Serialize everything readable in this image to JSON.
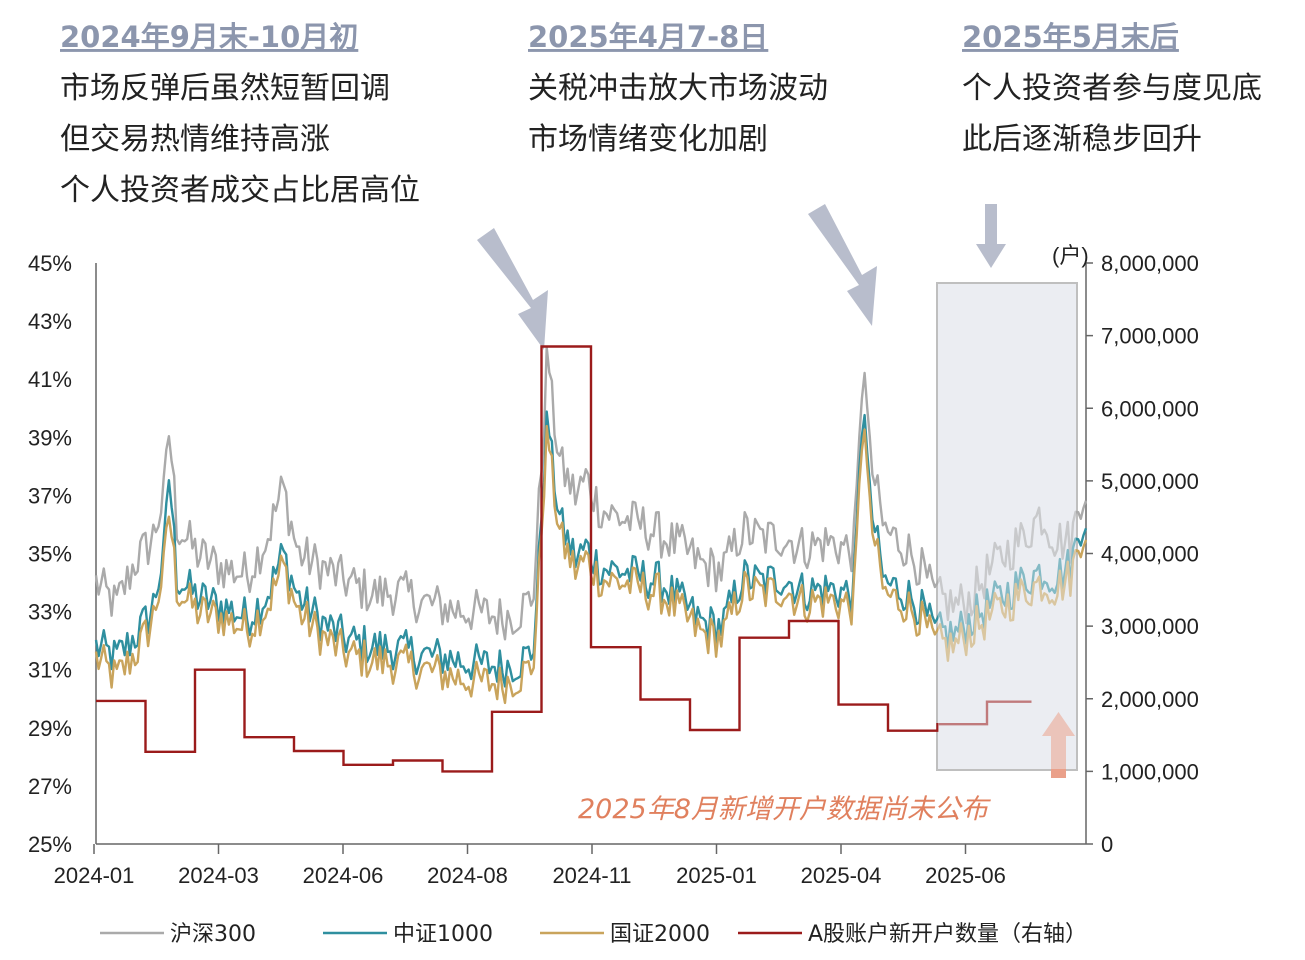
{
  "annotations": [
    {
      "heading": "2024年9月末-10月初",
      "lines": [
        "市场反弹后虽然短暂回调",
        "但交易热情维持高涨",
        "个人投资者成交占比居高位"
      ]
    },
    {
      "heading": "2025年4月7-8日",
      "lines": [
        "关税冲击放大市场波动",
        "市场情绪变化加剧"
      ]
    },
    {
      "heading": "2025年5月末后",
      "lines": [
        "个人投资者参与度见底",
        "此后逐渐稳步回升"
      ]
    }
  ],
  "note": "2025年8月新增开户数据尚未公布",
  "colors": {
    "hs300": "#aaaaaa",
    "zz1000": "#2f8f9f",
    "gz2000": "#c9a45c",
    "accounts": "#9b1b1b",
    "highlight_fill": "#e9ecf1",
    "arrow": "#b8bdcc",
    "note_arrow": "#eaa08a",
    "heading": "#8c96ad"
  },
  "chart_data": {
    "type": "line",
    "y_left": {
      "min": 25,
      "max": 45,
      "ticks": [
        "45%",
        "43%",
        "41%",
        "39%",
        "37%",
        "35%",
        "33%",
        "31%",
        "29%",
        "27%",
        "25%"
      ]
    },
    "y_right": {
      "unit": "(户)",
      "min": 0,
      "max": 8000000,
      "ticks": [
        "8,000,000",
        "7,000,000",
        "6,000,000",
        "5,000,000",
        "4,000,000",
        "3,000,000",
        "2,000,000",
        "1,000,000",
        "0"
      ]
    },
    "x_ticks": [
      "2024-01",
      "2024-03",
      "2024-06",
      "2024-08",
      "2024-11",
      "2025-01",
      "2025-04",
      "2025-06"
    ],
    "x_range_months": [
      0,
      19.6
    ],
    "series": [
      {
        "name": "沪深300",
        "key": "hs300",
        "anchors": [
          [
            0,
            34.0
          ],
          [
            0.4,
            33.2
          ],
          [
            0.8,
            34.8
          ],
          [
            1.1,
            35.4
          ],
          [
            1.35,
            37.0
          ],
          [
            1.45,
            39.3
          ],
          [
            1.6,
            36.0
          ],
          [
            2.0,
            35.0
          ],
          [
            2.5,
            34.5
          ],
          [
            3.0,
            34.3
          ],
          [
            3.4,
            35.6
          ],
          [
            3.7,
            37.3
          ],
          [
            4.0,
            35.0
          ],
          [
            4.5,
            34.5
          ],
          [
            5.0,
            34.0
          ],
          [
            5.5,
            33.6
          ],
          [
            6.0,
            33.7
          ],
          [
            6.5,
            33.3
          ],
          [
            7.0,
            33.1
          ],
          [
            7.5,
            33.0
          ],
          [
            8.0,
            32.8
          ],
          [
            8.3,
            32.9
          ],
          [
            8.65,
            33.5
          ],
          [
            8.75,
            36.0
          ],
          [
            8.85,
            39.0
          ],
          [
            8.95,
            42.4
          ],
          [
            9.0,
            40.5
          ],
          [
            9.2,
            38.0
          ],
          [
            9.5,
            37.0
          ],
          [
            9.7,
            37.6
          ],
          [
            10.0,
            36.5
          ],
          [
            10.4,
            36.2
          ],
          [
            10.8,
            36.0
          ],
          [
            11.2,
            35.6
          ],
          [
            11.6,
            35.2
          ],
          [
            12.0,
            34.6
          ],
          [
            12.4,
            34.4
          ],
          [
            12.8,
            35.8
          ],
          [
            13.2,
            35.5
          ],
          [
            13.6,
            35.6
          ],
          [
            14.0,
            35.2
          ],
          [
            14.5,
            35.4
          ],
          [
            15.0,
            35.1
          ],
          [
            15.1,
            38.0
          ],
          [
            15.2,
            42.3
          ],
          [
            15.3,
            38.5
          ],
          [
            15.6,
            35.8
          ],
          [
            16.0,
            35.3
          ],
          [
            16.3,
            34.6
          ],
          [
            16.6,
            33.5
          ],
          [
            17.0,
            33.2
          ],
          [
            17.3,
            33.4
          ],
          [
            17.6,
            34.2
          ],
          [
            18.0,
            35.0
          ],
          [
            18.4,
            35.6
          ],
          [
            18.7,
            36.4
          ],
          [
            19.0,
            35.5
          ],
          [
            19.3,
            35.4
          ],
          [
            19.5,
            37.0
          ],
          [
            19.6,
            37.3
          ]
        ]
      },
      {
        "name": "中证1000",
        "key": "zz1000",
        "anchors": [
          [
            0,
            31.8
          ],
          [
            0.4,
            31.4
          ],
          [
            0.8,
            32.2
          ],
          [
            1.1,
            33.0
          ],
          [
            1.35,
            35.0
          ],
          [
            1.45,
            37.8
          ],
          [
            1.6,
            34.2
          ],
          [
            2.0,
            33.5
          ],
          [
            2.5,
            33.2
          ],
          [
            3.0,
            32.8
          ],
          [
            3.4,
            33.6
          ],
          [
            3.7,
            35.0
          ],
          [
            4.0,
            33.5
          ],
          [
            4.5,
            32.6
          ],
          [
            5.0,
            32.0
          ],
          [
            5.5,
            31.8
          ],
          [
            6.0,
            31.7
          ],
          [
            6.5,
            31.5
          ],
          [
            7.0,
            31.4
          ],
          [
            7.5,
            31.2
          ],
          [
            8.0,
            31.1
          ],
          [
            8.3,
            31.2
          ],
          [
            8.65,
            31.6
          ],
          [
            8.75,
            34.0
          ],
          [
            8.85,
            37.5
          ],
          [
            8.95,
            40.0
          ],
          [
            9.0,
            38.5
          ],
          [
            9.2,
            36.0
          ],
          [
            9.5,
            34.8
          ],
          [
            9.7,
            35.2
          ],
          [
            10.0,
            34.5
          ],
          [
            10.4,
            34.4
          ],
          [
            10.8,
            34.2
          ],
          [
            11.2,
            34.0
          ],
          [
            11.6,
            33.3
          ],
          [
            12.0,
            32.6
          ],
          [
            12.4,
            32.5
          ],
          [
            12.8,
            34.2
          ],
          [
            13.2,
            34.0
          ],
          [
            13.6,
            34.2
          ],
          [
            14.0,
            33.7
          ],
          [
            14.5,
            33.8
          ],
          [
            15.0,
            33.6
          ],
          [
            15.1,
            37.0
          ],
          [
            15.2,
            40.8
          ],
          [
            15.3,
            37.0
          ],
          [
            15.6,
            34.0
          ],
          [
            16.0,
            33.7
          ],
          [
            16.3,
            33.2
          ],
          [
            16.6,
            32.3
          ],
          [
            17.0,
            32.2
          ],
          [
            17.3,
            32.7
          ],
          [
            17.6,
            33.1
          ],
          [
            18.0,
            33.6
          ],
          [
            18.4,
            34.1
          ],
          [
            18.7,
            34.4
          ],
          [
            19.0,
            34.2
          ],
          [
            19.3,
            34.6
          ],
          [
            19.5,
            36.0
          ],
          [
            19.6,
            36.3
          ]
        ]
      },
      {
        "name": "国证2000",
        "key": "gz2000",
        "anchors": [
          [
            0,
            31.4
          ],
          [
            0.4,
            30.7
          ],
          [
            0.8,
            31.6
          ],
          [
            1.1,
            32.6
          ],
          [
            1.35,
            34.5
          ],
          [
            1.45,
            36.5
          ],
          [
            1.6,
            33.8
          ],
          [
            2.0,
            33.0
          ],
          [
            2.5,
            32.8
          ],
          [
            3.0,
            32.4
          ],
          [
            3.4,
            33.2
          ],
          [
            3.7,
            34.6
          ],
          [
            4.0,
            33.0
          ],
          [
            4.5,
            32.1
          ],
          [
            5.0,
            31.5
          ],
          [
            5.5,
            31.3
          ],
          [
            6.0,
            31.2
          ],
          [
            6.5,
            31.0
          ],
          [
            7.0,
            30.8
          ],
          [
            7.5,
            30.6
          ],
          [
            8.0,
            30.5
          ],
          [
            8.3,
            30.7
          ],
          [
            8.65,
            31.1
          ],
          [
            8.75,
            33.5
          ],
          [
            8.85,
            37.0
          ],
          [
            8.95,
            39.5
          ],
          [
            9.0,
            38.0
          ],
          [
            9.2,
            35.5
          ],
          [
            9.5,
            34.4
          ],
          [
            9.7,
            34.8
          ],
          [
            10.0,
            34.1
          ],
          [
            10.4,
            34.0
          ],
          [
            10.8,
            33.8
          ],
          [
            11.2,
            33.6
          ],
          [
            11.6,
            32.9
          ],
          [
            12.0,
            32.2
          ],
          [
            12.4,
            32.1
          ],
          [
            12.8,
            33.8
          ],
          [
            13.2,
            33.6
          ],
          [
            13.6,
            33.8
          ],
          [
            14.0,
            33.3
          ],
          [
            14.5,
            33.4
          ],
          [
            15.0,
            33.2
          ],
          [
            15.1,
            36.5
          ],
          [
            15.2,
            40.3
          ],
          [
            15.3,
            36.5
          ],
          [
            15.6,
            33.6
          ],
          [
            16.0,
            33.3
          ],
          [
            16.3,
            32.8
          ],
          [
            16.6,
            31.9
          ],
          [
            17.0,
            31.8
          ],
          [
            17.3,
            32.3
          ],
          [
            17.6,
            32.7
          ],
          [
            18.0,
            33.2
          ],
          [
            18.4,
            33.7
          ],
          [
            18.7,
            34.0
          ],
          [
            19.0,
            33.8
          ],
          [
            19.3,
            34.2
          ],
          [
            19.5,
            35.6
          ],
          [
            19.6,
            35.9
          ]
        ]
      },
      {
        "name": "A股账户新开户数量（右轴）",
        "key": "accounts",
        "step": true,
        "values": [
          [
            0,
            1970000
          ],
          [
            1,
            1270000
          ],
          [
            2,
            2400000
          ],
          [
            3,
            1470000
          ],
          [
            4,
            1280000
          ],
          [
            5,
            1090000
          ],
          [
            6,
            1150000
          ],
          [
            7,
            1000000
          ],
          [
            8,
            1820000
          ],
          [
            9,
            6850000
          ],
          [
            10,
            2710000
          ],
          [
            11,
            1990000
          ],
          [
            12,
            1570000
          ],
          [
            13,
            2840000
          ],
          [
            14,
            3070000
          ],
          [
            15,
            1920000
          ],
          [
            16,
            1560000
          ],
          [
            17,
            1650000
          ],
          [
            18,
            1960000
          ],
          [
            18.9,
            1960000
          ]
        ]
      }
    ]
  },
  "legend": [
    "沪深300",
    "中证1000",
    "国证2000",
    "A股账户新开户数量（右轴）"
  ]
}
